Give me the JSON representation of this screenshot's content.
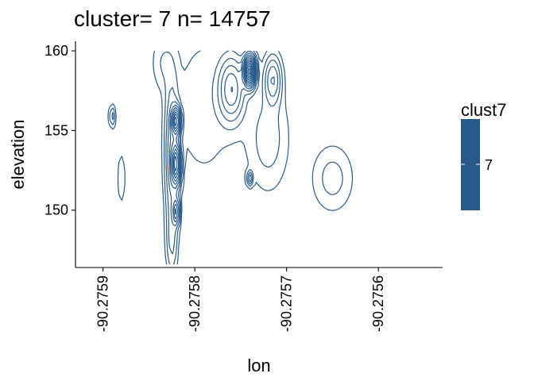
{
  "chart_data": {
    "type": "contour",
    "title": "cluster= 7 n= 14757",
    "xlabel": "lon",
    "ylabel": "elevation",
    "x_ticks": [
      -90.2759,
      -90.2758,
      -90.2757,
      -90.2756
    ],
    "x_tick_labels": [
      "-90.2759",
      "-90.2758",
      "-90.2757",
      "-90.2756"
    ],
    "y_ticks": [
      150,
      155,
      160
    ],
    "y_tick_labels": [
      "150",
      "155",
      "160"
    ],
    "xlim": [
      -90.27593,
      -90.27553
    ],
    "ylim": [
      146.4,
      160.6
    ],
    "grid": false,
    "legend": {
      "title": "clust7",
      "entries": [
        "7"
      ],
      "position": "right"
    },
    "line_color": "#275A8A",
    "density_peaks": [
      {
        "lon": -90.27574,
        "elevation": 158.7,
        "label": "main peak"
      },
      {
        "lon": -90.27582,
        "elevation": 155.6,
        "label": "peak"
      },
      {
        "lon": -90.27582,
        "elevation": 152.9,
        "label": "peak"
      },
      {
        "lon": -90.27582,
        "elevation": 149.9,
        "label": "peak"
      },
      {
        "lon": -90.27589,
        "elevation": 155.9,
        "label": "peak"
      },
      {
        "lon": -90.27574,
        "elevation": 152.0,
        "label": "peak"
      }
    ]
  }
}
